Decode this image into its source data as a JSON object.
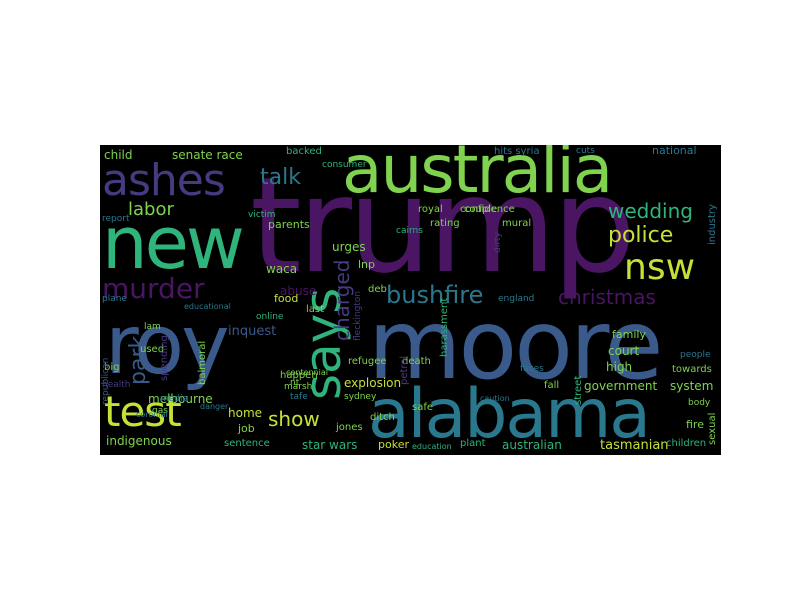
{
  "background": "#000000",
  "palette": {
    "purple": "#4a1563",
    "indigo": "#463a80",
    "blue": "#3b5a8c",
    "teal": "#2a788e",
    "green": "#2fb47c",
    "lime": "#7fd34e",
    "yellow": "#c6e03a",
    "cyan": "#21918c"
  },
  "words": [
    {
      "text": "trump",
      "color": "#4a1563"
    },
    {
      "text": "roy",
      "color": "#3b5a8c"
    },
    {
      "text": "moore",
      "color": "#3b5a8c"
    },
    {
      "text": "australia",
      "color": "#7fd34e"
    },
    {
      "text": "new",
      "color": "#2fb47c"
    },
    {
      "text": "alabama",
      "color": "#2a788e"
    },
    {
      "text": "ashes",
      "color": "#463a80"
    },
    {
      "text": "says",
      "color": "#2fb47c"
    },
    {
      "text": "test",
      "color": "#c6e03a"
    },
    {
      "text": "nsw",
      "color": "#c6e03a"
    },
    {
      "text": "murder",
      "color": "#4a1563"
    },
    {
      "text": "bushfire",
      "color": "#2a788e"
    },
    {
      "text": "christmas",
      "color": "#4a1563"
    },
    {
      "text": "police",
      "color": "#c6e03a"
    },
    {
      "text": "wedding",
      "color": "#2fb47c"
    },
    {
      "text": "talk",
      "color": "#2a788e"
    },
    {
      "text": "labor",
      "color": "#7fd34e"
    },
    {
      "text": "charged",
      "color": "#463a80"
    },
    {
      "text": "park",
      "color": "#3b5a8c"
    },
    {
      "text": "show",
      "color": "#c6e03a"
    },
    {
      "text": "senate race",
      "color": "#7fd34e"
    },
    {
      "text": "child",
      "color": "#7fd34e"
    },
    {
      "text": "melbourne",
      "color": "#7fd34e"
    },
    {
      "text": "indigenous",
      "color": "#7fd34e"
    },
    {
      "text": "government",
      "color": "#7fd34e"
    },
    {
      "text": "tasmanian",
      "color": "#c6e03a"
    },
    {
      "text": "australian",
      "color": "#2fb47c"
    },
    {
      "text": "star wars",
      "color": "#2fb47c"
    },
    {
      "text": "inquest",
      "color": "#3b5a8c"
    },
    {
      "text": "explosion",
      "color": "#c6e03a"
    },
    {
      "text": "abuse",
      "color": "#4a1563"
    },
    {
      "text": "court",
      "color": "#7fd34e"
    },
    {
      "text": "high",
      "color": "#7fd34e"
    },
    {
      "text": "system",
      "color": "#7fd34e"
    },
    {
      "text": "waca",
      "color": "#7fd34e"
    },
    {
      "text": "urges",
      "color": "#7fd34e"
    },
    {
      "text": "parents",
      "color": "#7fd34e"
    },
    {
      "text": "home",
      "color": "#c6e03a"
    },
    {
      "text": "job",
      "color": "#7fd34e"
    },
    {
      "text": "family",
      "color": "#7fd34e"
    },
    {
      "text": "sentence",
      "color": "#2fb47c"
    },
    {
      "text": "poker",
      "color": "#c6e03a"
    },
    {
      "text": "lnp",
      "color": "#7fd34e"
    },
    {
      "text": "jones",
      "color": "#7fd34e"
    },
    {
      "text": "safe",
      "color": "#7fd34e"
    },
    {
      "text": "fire",
      "color": "#7fd34e"
    },
    {
      "text": "children",
      "color": "#2fb47c"
    },
    {
      "text": "national",
      "color": "#2a788e"
    },
    {
      "text": "royal",
      "color": "#7fd34e"
    },
    {
      "text": "couple",
      "color": "#7fd34e"
    },
    {
      "text": "death",
      "color": "#7fd34e"
    },
    {
      "text": "food",
      "color": "#c6e03a"
    },
    {
      "text": "big",
      "color": "#7fd34e"
    },
    {
      "text": "used",
      "color": "#7fd34e"
    },
    {
      "text": "last",
      "color": "#7fd34e"
    },
    {
      "text": "deb",
      "color": "#7fd34e"
    },
    {
      "text": "refugee",
      "color": "#7fd34e"
    },
    {
      "text": "ditch",
      "color": "#7fd34e"
    },
    {
      "text": "plant",
      "color": "#2fb47c"
    },
    {
      "text": "hits syria",
      "color": "#2a788e"
    },
    {
      "text": "harassment",
      "color": "#2fb47c"
    },
    {
      "text": "balmoral",
      "color": "#7fd34e"
    },
    {
      "text": "fall",
      "color": "#7fd34e"
    },
    {
      "text": "towards",
      "color": "#7fd34e"
    },
    {
      "text": "sexual",
      "color": "#7fd34e"
    },
    {
      "text": "backed",
      "color": "#2fb47c"
    },
    {
      "text": "happen",
      "color": "#7fd34e"
    },
    {
      "text": "mural",
      "color": "#7fd34e"
    },
    {
      "text": "confidence",
      "color": "#7fd34e"
    },
    {
      "text": "rating",
      "color": "#7fd34e"
    },
    {
      "text": "industry",
      "color": "#2a788e"
    },
    {
      "text": "education",
      "color": "#2fb47c"
    },
    {
      "text": "street",
      "color": "#2fb47c"
    },
    {
      "text": "petrol",
      "color": "#463a80"
    },
    {
      "text": "republican",
      "color": "#3b5a8c"
    },
    {
      "text": "spending",
      "color": "#463a80"
    },
    {
      "text": "media",
      "color": "#2a788e"
    },
    {
      "text": "sydney",
      "color": "#7fd34e"
    },
    {
      "text": "marsh",
      "color": "#7fd34e"
    },
    {
      "text": "victim",
      "color": "#2fb47c"
    },
    {
      "text": "consumer",
      "color": "#2fb47c"
    },
    {
      "text": "fleckington",
      "color": "#463a80"
    },
    {
      "text": "body",
      "color": "#7fd34e"
    },
    {
      "text": "people",
      "color": "#2a788e"
    },
    {
      "text": "centennial",
      "color": "#7fd34e"
    },
    {
      "text": "tafe",
      "color": "#2a788e"
    },
    {
      "text": "nt",
      "color": "#7fd34e"
    },
    {
      "text": "online",
      "color": "#2fb47c"
    },
    {
      "text": "gas",
      "color": "#7fd34e"
    },
    {
      "text": "lam",
      "color": "#7fd34e"
    },
    {
      "text": "report",
      "color": "#2a788e"
    },
    {
      "text": "plane",
      "color": "#2a788e"
    },
    {
      "text": "cairns",
      "color": "#2fb47c"
    },
    {
      "text": "cuts",
      "color": "#2a788e"
    },
    {
      "text": "health",
      "color": "#463a80"
    },
    {
      "text": "danger",
      "color": "#2a788e"
    },
    {
      "text": "faces",
      "color": "#2a788e"
    },
    {
      "text": "england",
      "color": "#2a788e"
    },
    {
      "text": "caution",
      "color": "#2a788e"
    },
    {
      "text": "coronial",
      "color": "#2a788e"
    },
    {
      "text": "educational",
      "color": "#2a788e"
    },
    {
      "text": "dirty",
      "color": "#463a80"
    }
  ]
}
